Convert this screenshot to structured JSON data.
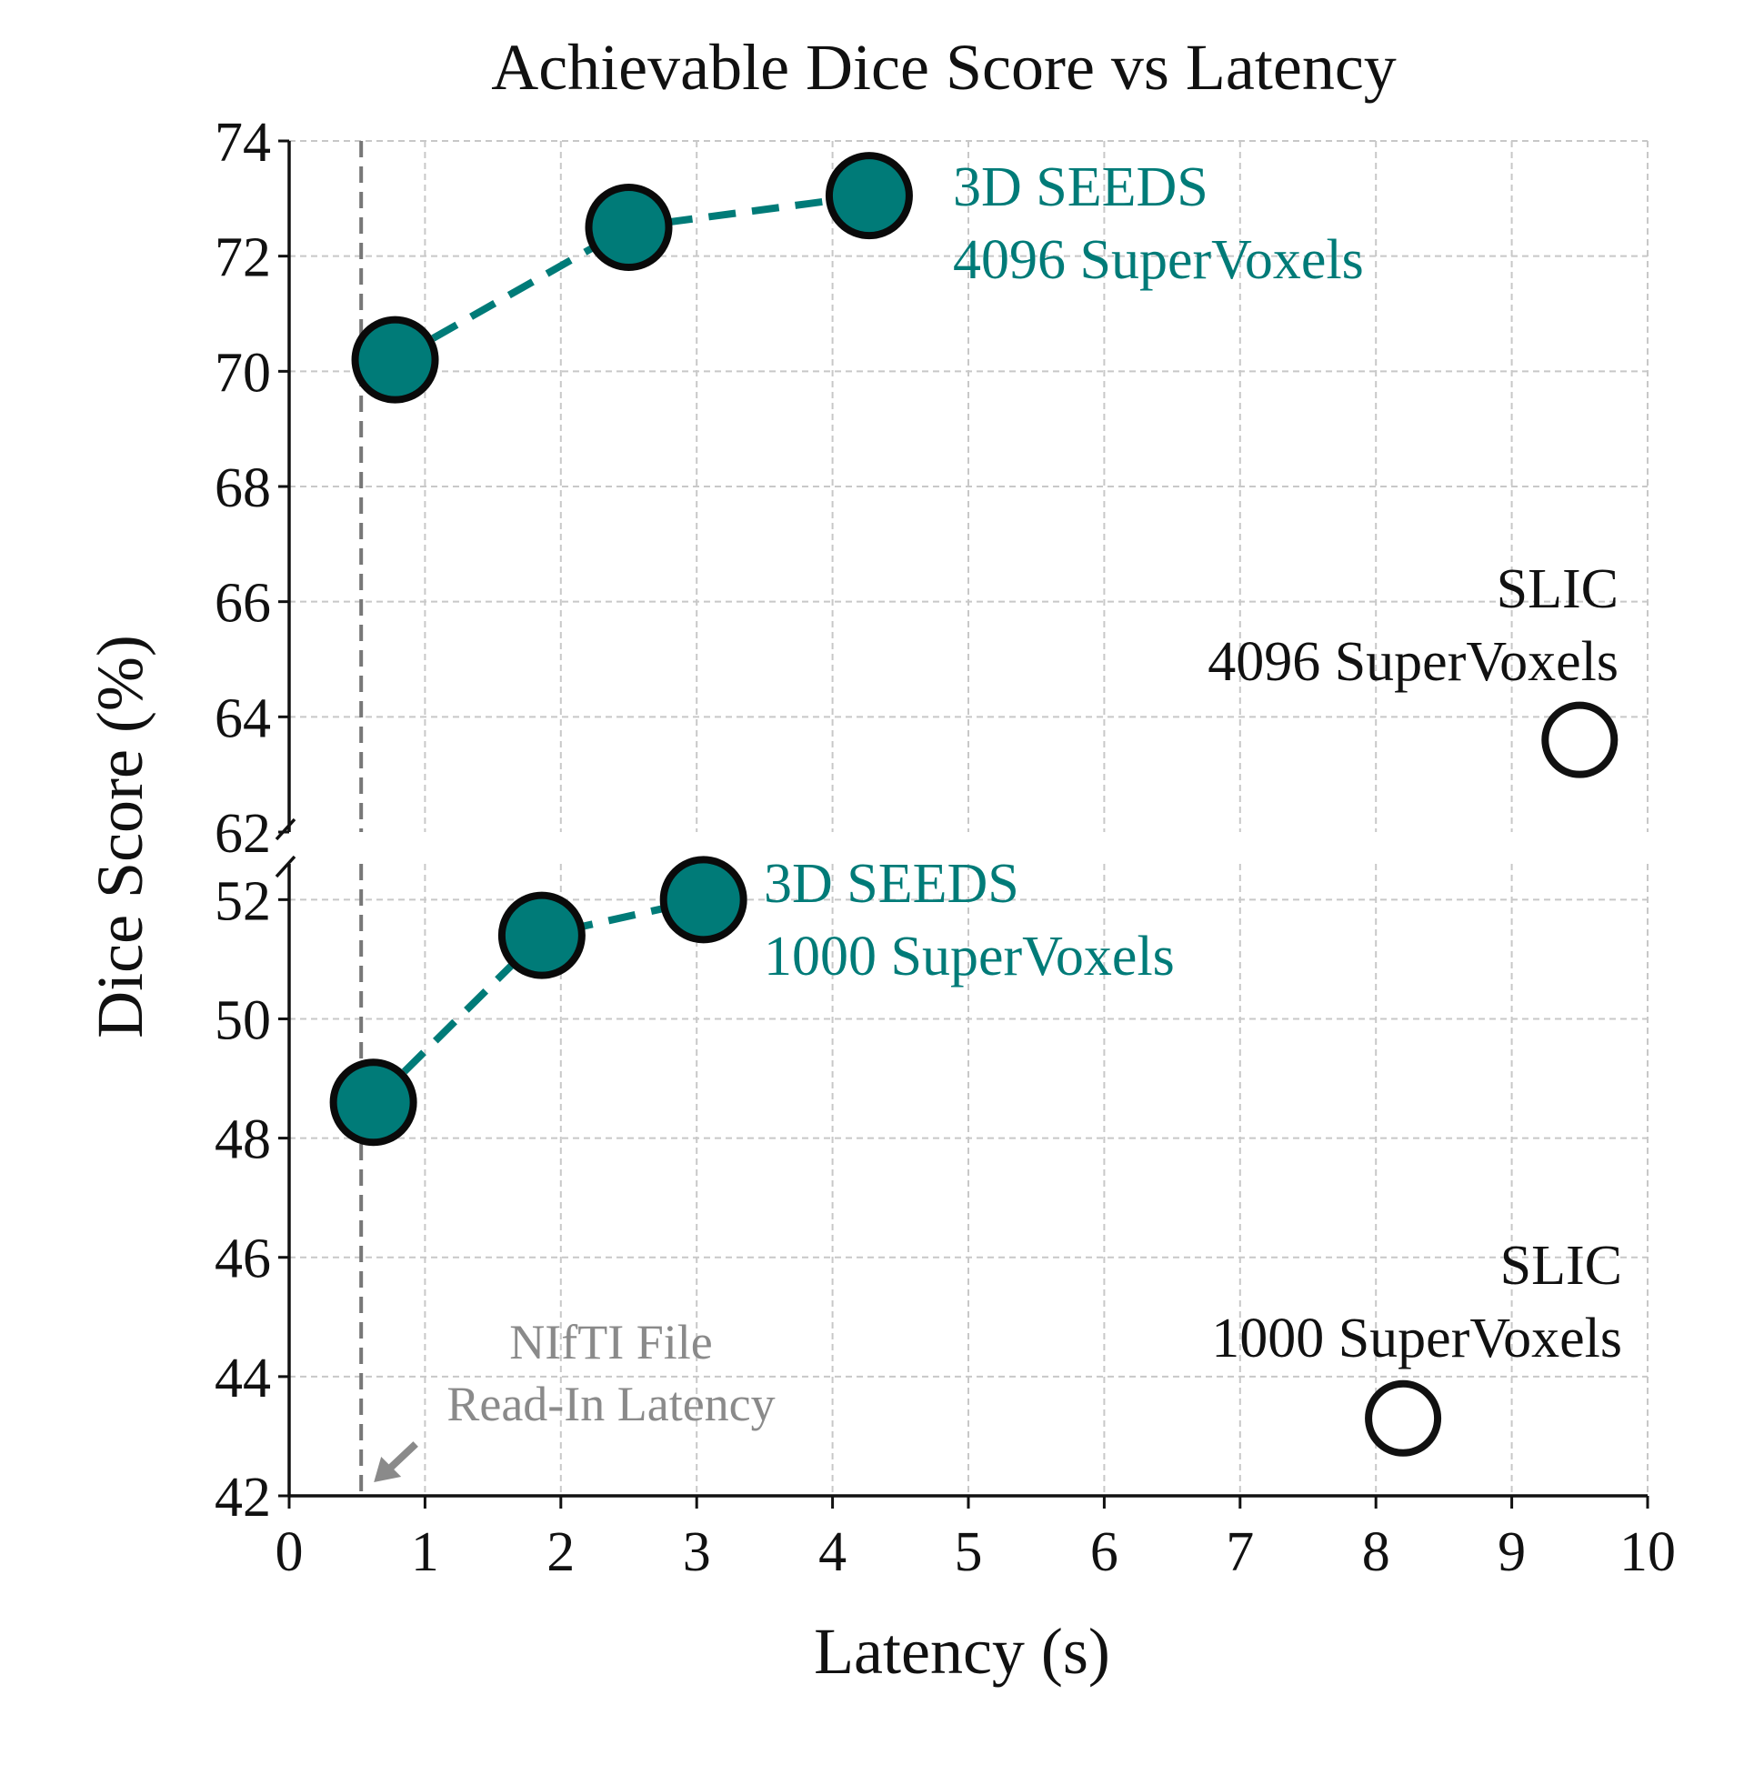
{
  "chart_data": {
    "type": "scatter",
    "title": "Achievable Dice Score vs Latency",
    "xlabel": "Latency (s)",
    "ylabel": "Dice Score (%)",
    "xlim": [
      0,
      10
    ],
    "x_ticks": [
      "0",
      "1",
      "2",
      "3",
      "4",
      "5",
      "6",
      "7",
      "8",
      "9",
      "10"
    ],
    "broken_y_axis": true,
    "y_segments": [
      {
        "name": "upper",
        "ylim": [
          62,
          74
        ],
        "ticks": [
          "62",
          "64",
          "66",
          "68",
          "70",
          "72",
          "74"
        ]
      },
      {
        "name": "lower",
        "ylim": [
          42,
          52.6
        ],
        "ticks": [
          "42",
          "44",
          "46",
          "48",
          "50",
          "52"
        ]
      }
    ],
    "grid": true,
    "series": [
      {
        "name": "3D SEEDS 4096 SuperVoxels",
        "label_lines": [
          "3D SEEDS",
          "4096 SuperVoxels"
        ],
        "segment": "upper",
        "style": "filled-dashed",
        "color": "#007b78",
        "x": [
          0.78,
          2.5,
          4.27
        ],
        "y": [
          70.2,
          72.5,
          73.05
        ]
      },
      {
        "name": "SLIC 4096 SuperVoxels",
        "label_lines": [
          "SLIC",
          "4096 SuperVoxels"
        ],
        "segment": "upper",
        "style": "hollow",
        "color": "#111111",
        "x": [
          9.5
        ],
        "y": [
          63.6
        ]
      },
      {
        "name": "3D SEEDS 1000 SuperVoxels",
        "label_lines": [
          "3D SEEDS",
          "1000 SuperVoxels"
        ],
        "segment": "lower",
        "style": "filled-dashed",
        "color": "#007b78",
        "x": [
          0.62,
          1.86,
          3.05
        ],
        "y": [
          48.6,
          51.4,
          52.0
        ]
      },
      {
        "name": "SLIC 1000 SuperVoxels",
        "label_lines": [
          "SLIC",
          "1000 SuperVoxels"
        ],
        "segment": "lower",
        "style": "hollow",
        "color": "#111111",
        "x": [
          8.2
        ],
        "y": [
          43.3
        ]
      }
    ],
    "reference_line": {
      "x": 0.53,
      "label_lines": [
        "NIfTI File",
        "Read-In Latency"
      ],
      "color": "#8a8a8a"
    }
  }
}
